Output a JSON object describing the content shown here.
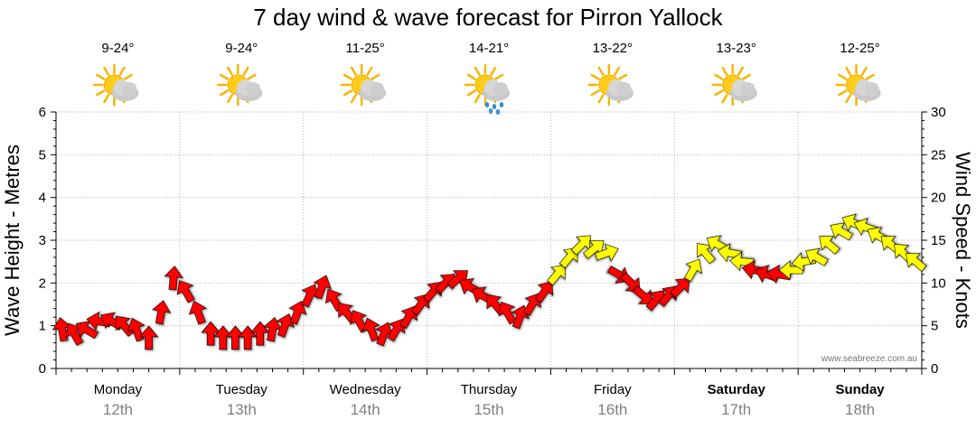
{
  "title": "7 day wind & wave forecast for Pirron Yallock",
  "watermark": "www.seabreeze.com.au",
  "days": [
    {
      "name": "Monday",
      "date": "12th",
      "temp": "9-24°",
      "icon": "partly-cloudy-icon",
      "bold": false
    },
    {
      "name": "Tuesday",
      "date": "13th",
      "temp": "9-24°",
      "icon": "partly-cloudy-icon",
      "bold": false
    },
    {
      "name": "Wednesday",
      "date": "14th",
      "temp": "11-25°",
      "icon": "partly-cloudy-icon",
      "bold": false
    },
    {
      "name": "Thursday",
      "date": "15th",
      "temp": "14-21°",
      "icon": "rain-shower-icon",
      "bold": false
    },
    {
      "name": "Friday",
      "date": "16th",
      "temp": "13-22°",
      "icon": "partly-cloudy-icon",
      "bold": false
    },
    {
      "name": "Saturday",
      "date": "17th",
      "temp": "13-23°",
      "icon": "partly-cloudy-icon",
      "bold": true
    },
    {
      "name": "Sunday",
      "date": "18th",
      "temp": "12-25°",
      "icon": "partly-cloudy-icon",
      "bold": true
    }
  ],
  "chart_data": {
    "type": "line",
    "title": "7 day wind & wave forecast for Pirron Yallock",
    "left_axis": {
      "label": "Wave Height - Metres",
      "min": 0,
      "max": 6,
      "ticks": [
        "0",
        "1",
        "2",
        "3",
        "4",
        "5",
        "6"
      ]
    },
    "right_axis": {
      "label": "Wind Speed - Knots",
      "min": 0,
      "max": 30,
      "ticks": [
        "0",
        "5",
        "10",
        "15",
        "20",
        "25",
        "30"
      ]
    },
    "grid": true,
    "categories": [
      "Monday 12th",
      "Tuesday 13th",
      "Wednesday 14th",
      "Thursday 15th",
      "Friday 16th",
      "Saturday 17th",
      "Sunday 18th"
    ],
    "wind": {
      "unit": "knots",
      "colors": {
        "strong": "#ff0000",
        "moderate": "#ffff00"
      },
      "points": [
        {
          "t": 0.05,
          "v": 4.5,
          "dir": 350,
          "c": "strong"
        },
        {
          "t": 0.15,
          "v": 4.0,
          "dir": 330,
          "c": "strong"
        },
        {
          "t": 0.25,
          "v": 4.5,
          "dir": 300,
          "c": "strong"
        },
        {
          "t": 0.35,
          "v": 5.5,
          "dir": 280,
          "c": "strong"
        },
        {
          "t": 0.45,
          "v": 5.5,
          "dir": 300,
          "c": "strong"
        },
        {
          "t": 0.55,
          "v": 5.0,
          "dir": 320,
          "c": "strong"
        },
        {
          "t": 0.65,
          "v": 4.5,
          "dir": 340,
          "c": "strong"
        },
        {
          "t": 0.75,
          "v": 3.5,
          "dir": 0,
          "c": "strong"
        },
        {
          "t": 0.85,
          "v": 6.5,
          "dir": 10,
          "c": "strong"
        },
        {
          "t": 0.95,
          "v": 10.5,
          "dir": 5,
          "c": "strong"
        },
        {
          "t": 1.05,
          "v": 9.0,
          "dir": 330,
          "c": "strong"
        },
        {
          "t": 1.15,
          "v": 6.5,
          "dir": 340,
          "c": "strong"
        },
        {
          "t": 1.25,
          "v": 4.0,
          "dir": 0,
          "c": "strong"
        },
        {
          "t": 1.35,
          "v": 3.5,
          "dir": 0,
          "c": "strong"
        },
        {
          "t": 1.45,
          "v": 3.5,
          "dir": 0,
          "c": "strong"
        },
        {
          "t": 1.55,
          "v": 3.5,
          "dir": 0,
          "c": "strong"
        },
        {
          "t": 1.65,
          "v": 4.0,
          "dir": 0,
          "c": "strong"
        },
        {
          "t": 1.75,
          "v": 4.5,
          "dir": 10,
          "c": "strong"
        },
        {
          "t": 1.85,
          "v": 5.0,
          "dir": 20,
          "c": "strong"
        },
        {
          "t": 1.95,
          "v": 6.5,
          "dir": 20,
          "c": "strong"
        },
        {
          "t": 2.05,
          "v": 8.5,
          "dir": 25,
          "c": "strong"
        },
        {
          "t": 2.15,
          "v": 9.5,
          "dir": 20,
          "c": "strong"
        },
        {
          "t": 2.25,
          "v": 8.0,
          "dir": 330,
          "c": "strong"
        },
        {
          "t": 2.35,
          "v": 6.5,
          "dir": 320,
          "c": "strong"
        },
        {
          "t": 2.45,
          "v": 5.5,
          "dir": 330,
          "c": "strong"
        },
        {
          "t": 2.55,
          "v": 4.5,
          "dir": 340,
          "c": "strong"
        },
        {
          "t": 2.65,
          "v": 4.0,
          "dir": 20,
          "c": "strong"
        },
        {
          "t": 2.75,
          "v": 4.5,
          "dir": 30,
          "c": "strong"
        },
        {
          "t": 2.85,
          "v": 6.0,
          "dir": 30,
          "c": "strong"
        },
        {
          "t": 2.95,
          "v": 7.5,
          "dir": 35,
          "c": "strong"
        },
        {
          "t": 3.05,
          "v": 9.0,
          "dir": 40,
          "c": "strong"
        },
        {
          "t": 3.15,
          "v": 10.0,
          "dir": 45,
          "c": "strong"
        },
        {
          "t": 3.25,
          "v": 10.5,
          "dir": 50,
          "c": "strong"
        },
        {
          "t": 3.35,
          "v": 9.5,
          "dir": 300,
          "c": "strong"
        },
        {
          "t": 3.45,
          "v": 8.5,
          "dir": 300,
          "c": "strong"
        },
        {
          "t": 3.55,
          "v": 7.5,
          "dir": 320,
          "c": "strong"
        },
        {
          "t": 3.65,
          "v": 6.5,
          "dir": 330,
          "c": "strong"
        },
        {
          "t": 3.75,
          "v": 6.0,
          "dir": 20,
          "c": "strong"
        },
        {
          "t": 3.85,
          "v": 7.5,
          "dir": 30,
          "c": "strong"
        },
        {
          "t": 3.95,
          "v": 9.0,
          "dir": 35,
          "c": "strong"
        },
        {
          "t": 4.05,
          "v": 11.0,
          "dir": 40,
          "c": "moderate"
        },
        {
          "t": 4.15,
          "v": 13.0,
          "dir": 40,
          "c": "moderate"
        },
        {
          "t": 4.25,
          "v": 14.5,
          "dir": 45,
          "c": "moderate"
        },
        {
          "t": 4.35,
          "v": 14.0,
          "dir": 50,
          "c": "moderate"
        },
        {
          "t": 4.45,
          "v": 13.5,
          "dir": 70,
          "c": "moderate"
        },
        {
          "t": 4.55,
          "v": 11.0,
          "dir": 120,
          "c": "strong"
        },
        {
          "t": 4.65,
          "v": 10.0,
          "dir": 135,
          "c": "strong"
        },
        {
          "t": 4.75,
          "v": 8.5,
          "dir": 130,
          "c": "strong"
        },
        {
          "t": 4.85,
          "v": 8.0,
          "dir": 40,
          "c": "strong"
        },
        {
          "t": 4.95,
          "v": 8.5,
          "dir": 40,
          "c": "strong"
        },
        {
          "t": 5.05,
          "v": 9.5,
          "dir": 45,
          "c": "strong"
        },
        {
          "t": 5.15,
          "v": 11.5,
          "dir": 30,
          "c": "moderate"
        },
        {
          "t": 5.25,
          "v": 13.5,
          "dir": 320,
          "c": "moderate"
        },
        {
          "t": 5.35,
          "v": 14.5,
          "dir": 300,
          "c": "moderate"
        },
        {
          "t": 5.45,
          "v": 13.5,
          "dir": 280,
          "c": "moderate"
        },
        {
          "t": 5.55,
          "v": 12.5,
          "dir": 275,
          "c": "moderate"
        },
        {
          "t": 5.65,
          "v": 11.5,
          "dir": 280,
          "c": "strong"
        },
        {
          "t": 5.75,
          "v": 11.0,
          "dir": 290,
          "c": "strong"
        },
        {
          "t": 5.85,
          "v": 11.0,
          "dir": 280,
          "c": "strong"
        },
        {
          "t": 5.95,
          "v": 11.5,
          "dir": 270,
          "c": "moderate"
        },
        {
          "t": 6.05,
          "v": 12.5,
          "dir": 260,
          "c": "moderate"
        },
        {
          "t": 6.15,
          "v": 13.0,
          "dir": 300,
          "c": "moderate"
        },
        {
          "t": 6.25,
          "v": 14.5,
          "dir": 310,
          "c": "moderate"
        },
        {
          "t": 6.35,
          "v": 16.0,
          "dir": 300,
          "c": "moderate"
        },
        {
          "t": 6.45,
          "v": 17.0,
          "dir": 295,
          "c": "moderate"
        },
        {
          "t": 6.55,
          "v": 16.5,
          "dir": 290,
          "c": "moderate"
        },
        {
          "t": 6.65,
          "v": 15.5,
          "dir": 300,
          "c": "moderate"
        },
        {
          "t": 6.75,
          "v": 14.5,
          "dir": 310,
          "c": "moderate"
        },
        {
          "t": 6.85,
          "v": 13.5,
          "dir": 315,
          "c": "moderate"
        },
        {
          "t": 6.95,
          "v": 12.5,
          "dir": 310,
          "c": "moderate"
        }
      ]
    }
  }
}
